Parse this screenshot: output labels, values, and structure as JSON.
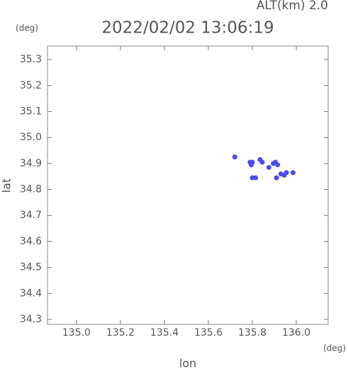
{
  "chart_data": {
    "type": "scatter",
    "title": "2022/02/02 13:06:19",
    "subtitle": "ALT(km)  2.0",
    "x_label": "lon",
    "y_label": "lat",
    "x_unit": "(deg)",
    "y_unit": "(deg)",
    "color": "#4b4bf0",
    "x": [
      135.72,
      135.79,
      135.795,
      135.8,
      135.835,
      135.845,
      135.875,
      135.895,
      135.905,
      135.915,
      135.93,
      135.945,
      135.955,
      135.985,
      135.8,
      135.815,
      135.91
    ],
    "values": [
      34.925,
      34.905,
      34.895,
      34.905,
      34.915,
      34.905,
      34.885,
      34.9,
      34.905,
      34.895,
      34.86,
      34.855,
      34.865,
      34.865,
      34.845,
      34.845,
      34.845
    ],
    "xlim": [
      134.868,
      136.145
    ],
    "ylim": [
      34.281,
      35.352
    ],
    "xticks": [
      {
        "value": 135.0,
        "label": "135.0"
      },
      135.2,
      135.4,
      135.6,
      135.8,
      {
        "value": 136.0,
        "label": "136.0"
      }
    ],
    "yticks": [
      34.3,
      34.4,
      34.5,
      34.6,
      34.7,
      34.8,
      34.9,
      {
        "value": 35.0,
        "label": "35.0"
      },
      35.1,
      35.2,
      35.3
    ]
  }
}
